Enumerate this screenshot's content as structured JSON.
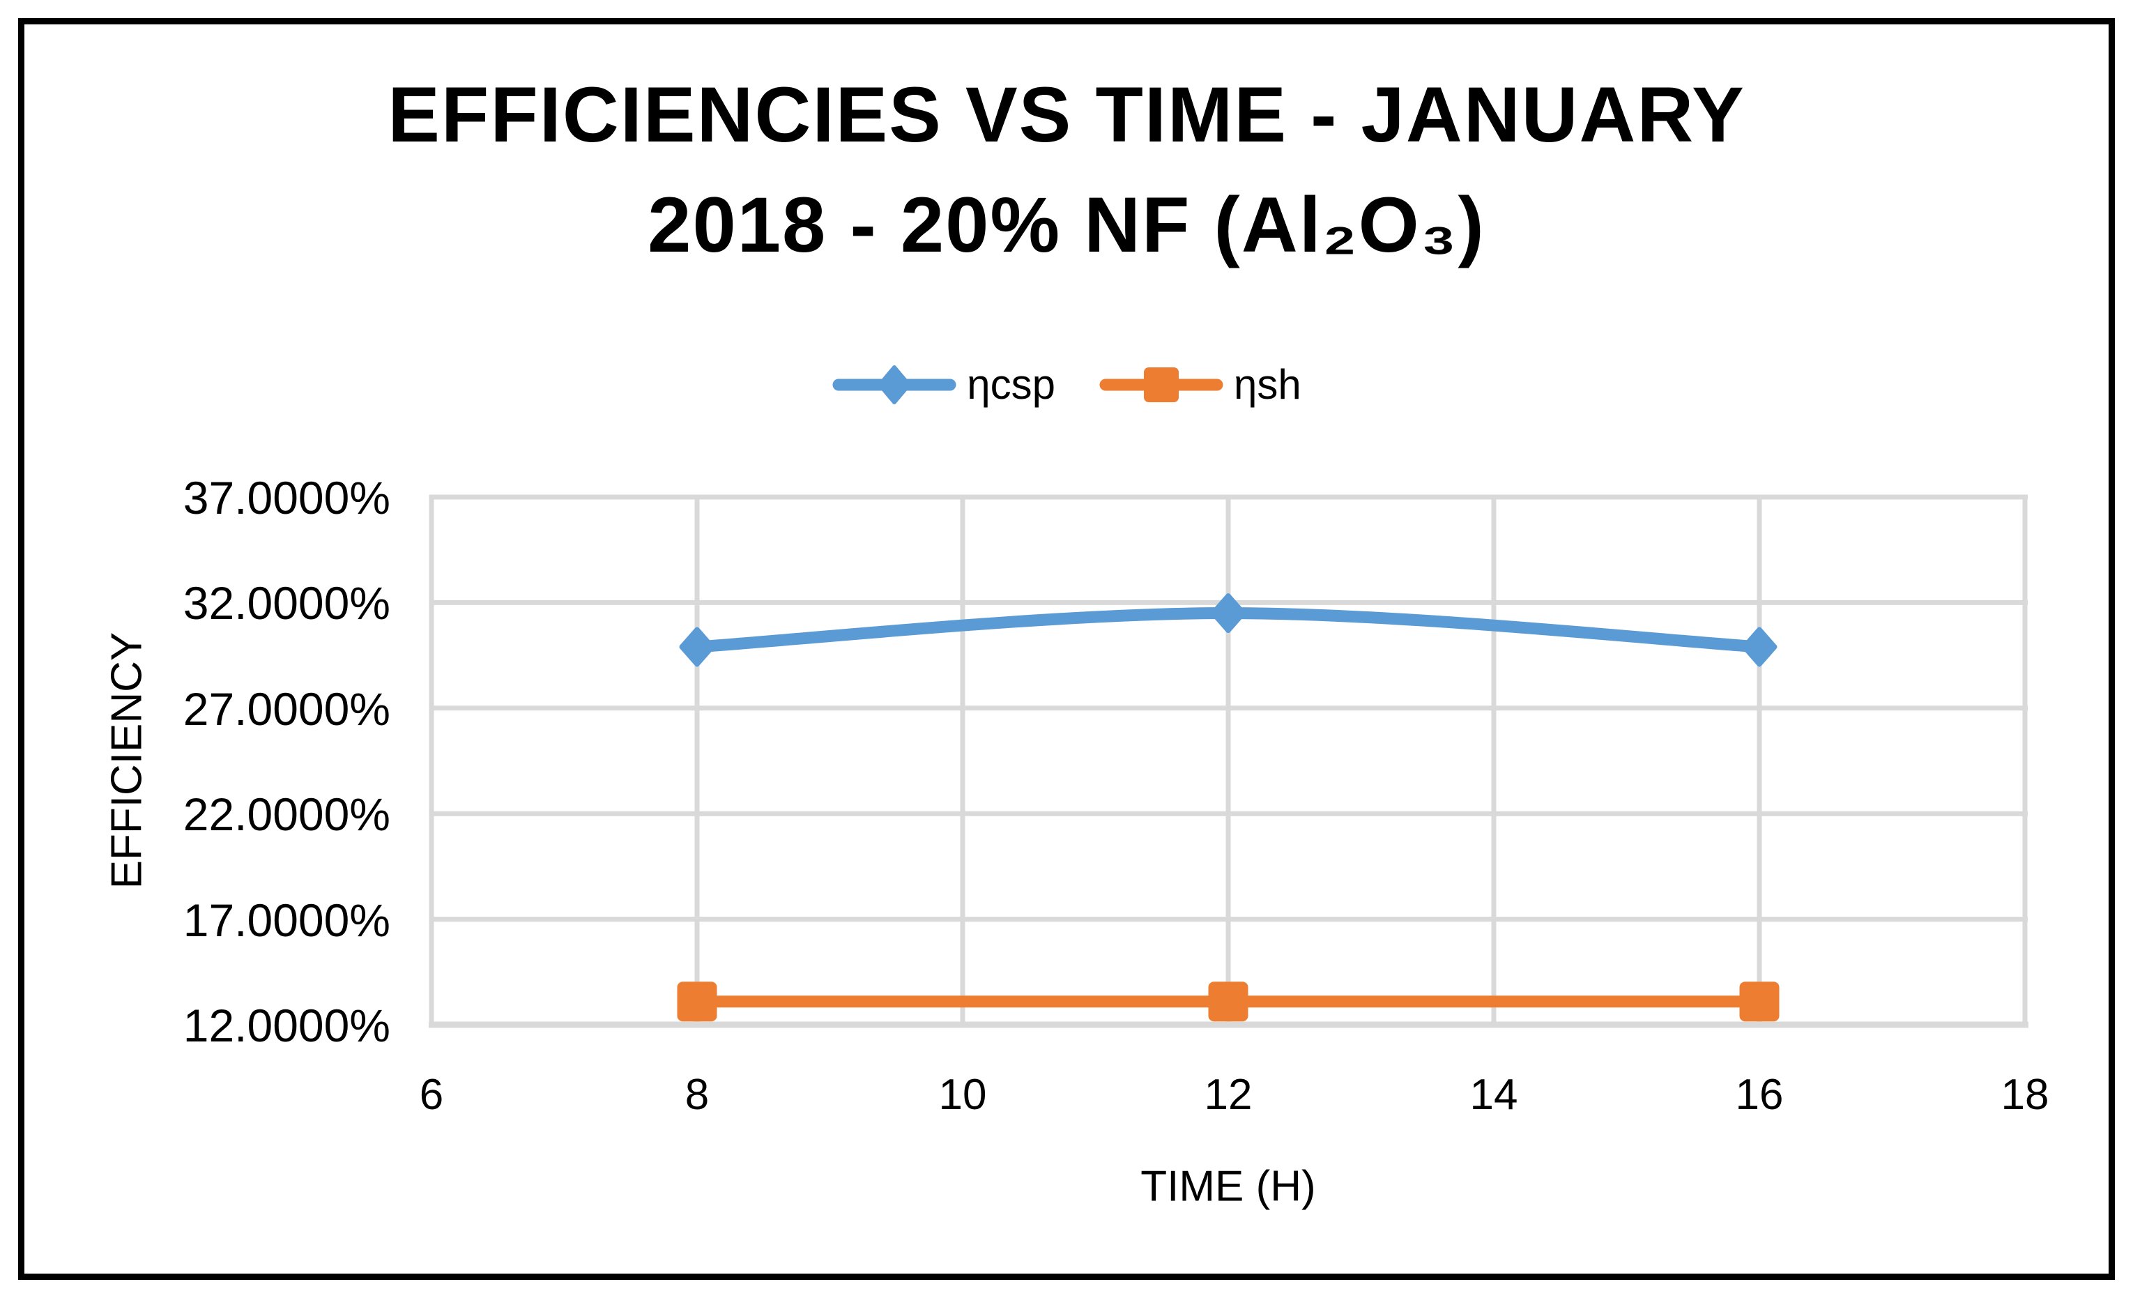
{
  "chart_data": {
    "type": "line",
    "title_line1": "EFFICIENCIES VS TIME - JANUARY",
    "title_line2": "2018 - 20% NF (Al₂O₃)",
    "xlabel": "TIME (H)",
    "ylabel": "EFFICIENCY",
    "x": [
      8,
      12,
      16
    ],
    "series": [
      {
        "name": "ηcsp",
        "values": [
          29.9,
          31.5,
          29.9
        ],
        "color": "#5B9BD5",
        "marker": "diamond",
        "smooth": true
      },
      {
        "name": "ηsh",
        "values": [
          13.1,
          13.1,
          13.1
        ],
        "color": "#ED7D31",
        "marker": "square",
        "smooth": false
      }
    ],
    "xlim": [
      6,
      18
    ],
    "ylim": [
      12,
      37
    ],
    "x_ticks": [
      "6",
      "8",
      "10",
      "12",
      "14",
      "16",
      "18"
    ],
    "y_ticks": [
      "37.0000%",
      "32.0000%",
      "27.0000%",
      "22.0000%",
      "17.0000%",
      "12.0000%"
    ],
    "grid": true,
    "gridline_color": "#D9D9D9",
    "axis_line_color": "#D9D9D9",
    "text_color": "#000000",
    "legend_position": "top-center"
  },
  "window": {
    "background": "#ffffff",
    "border_color": "#000000"
  }
}
